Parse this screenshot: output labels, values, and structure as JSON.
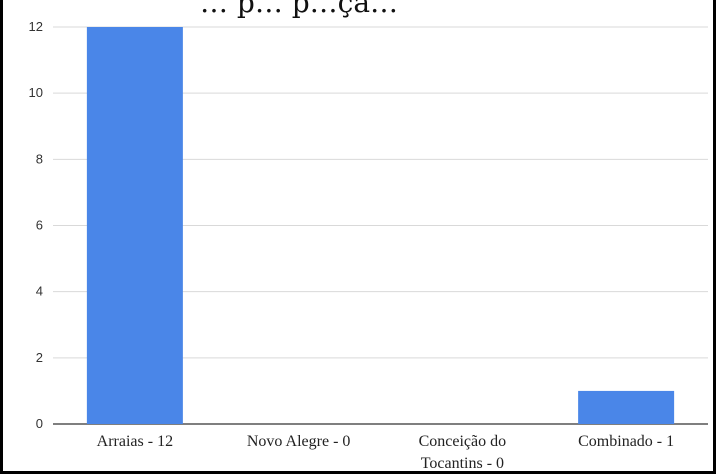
{
  "chart_data": {
    "type": "bar",
    "title_fragment": "… p… p…çã…",
    "categories": [
      [
        "Arraias - 12"
      ],
      [
        "Novo Alegre - 0"
      ],
      [
        "Conceição do",
        "Tocantins - 0"
      ],
      [
        "Combinado - 1"
      ]
    ],
    "values": [
      12,
      0,
      0,
      1
    ],
    "ylim": [
      0,
      12
    ],
    "yticks": [
      "0",
      "2",
      "4",
      "6",
      "8",
      "10",
      "12"
    ],
    "grid": true,
    "bar_color": "#4a86e8",
    "gridline_color": "#d9d9d9"
  }
}
